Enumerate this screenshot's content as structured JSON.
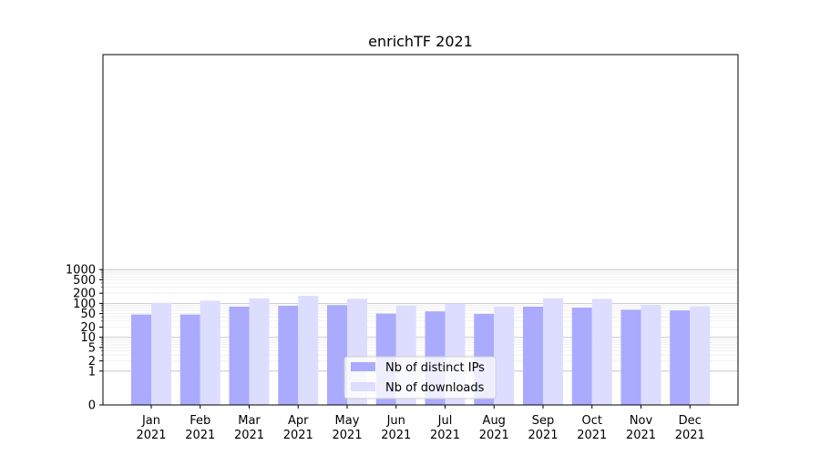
{
  "chart_data": {
    "type": "bar",
    "title": "enrichTF 2021",
    "xlabel": "",
    "ylabel": "",
    "yscale": "symlog",
    "y_ticks": [
      0,
      1,
      2,
      5,
      10,
      20,
      50,
      100,
      200,
      500,
      1000
    ],
    "y_tick_labels": [
      "0",
      "1",
      "2",
      "5",
      "10",
      "20",
      "50",
      "100",
      "200",
      "500",
      "1000"
    ],
    "categories": [
      "Jan",
      "Feb",
      "Mar",
      "Apr",
      "May",
      "Jun",
      "Jul",
      "Aug",
      "Sep",
      "Oct",
      "Nov",
      "Dec"
    ],
    "category_year": "2021",
    "series": [
      {
        "name": "Nb of distinct IPs",
        "color": "#aaaaff",
        "values": [
          47,
          47,
          80,
          85,
          89,
          50,
          58,
          49,
          80,
          75,
          65,
          62
        ]
      },
      {
        "name": "Nb of downloads",
        "color": "#ddddff",
        "values": [
          104,
          120,
          141,
          167,
          138,
          86,
          99,
          80,
          142,
          136,
          90,
          82
        ]
      }
    ],
    "legend_position": "lower-center",
    "grid": "horizontal"
  }
}
